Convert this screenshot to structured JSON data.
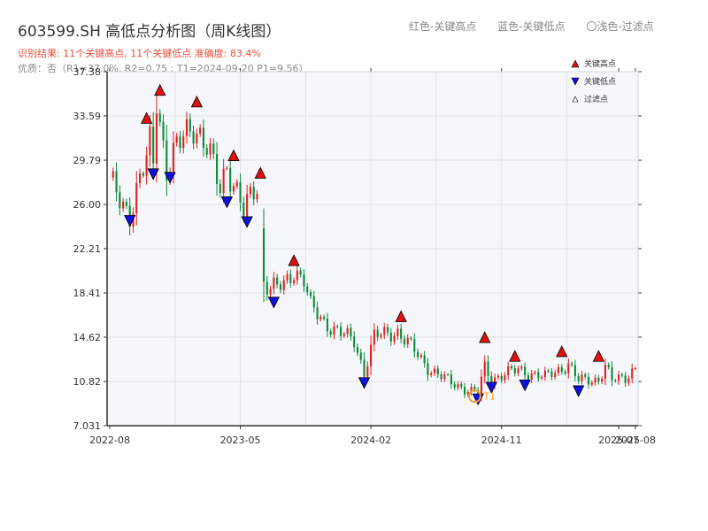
{
  "title": "603599.SH 高低点分析图（周K线图）",
  "subtitle": "识别结果: 11个关键高点, 11个关键低点   准确度: 83.4%",
  "quality": "优质：否（R1=37.0%, R2=0.75 ; T1=2024-09-20 P1=9.56）",
  "top_legend": [
    "红色-关键高点",
    "蓝色-关键低点",
    "〇浅色-过滤点"
  ],
  "colors": {
    "up": "#e02020",
    "down": "#0a8a3a",
    "high_marker": "#e01010",
    "low_marker": "#1010e0",
    "t1": "#f0a030",
    "plot_bg": "#f6f7fa",
    "grid": "#dde1e8"
  },
  "chart_data": {
    "type": "candlestick",
    "ylim": [
      7.031,
      37.38
    ],
    "yticks": [
      "37.38",
      "33.59",
      "29.79",
      "26.00",
      "22.21",
      "18.41",
      "14.62",
      "10.82",
      "7.031"
    ],
    "xticks": [
      {
        "label": "2022-08",
        "week": 0
      },
      {
        "label": "2023-05",
        "week": 39
      },
      {
        "label": "2024-02",
        "week": 78
      },
      {
        "label": "2024-11",
        "week": 117
      },
      {
        "label": "2025-07",
        "week": 152
      },
      {
        "label": "2025-08",
        "week": 157
      }
    ],
    "total_weeks": 157,
    "anchors": [
      [
        0,
        27.8
      ],
      [
        6,
        25.2
      ],
      [
        11,
        29.8
      ],
      [
        12,
        31.2
      ],
      [
        13,
        29.6
      ],
      [
        14,
        35.4
      ],
      [
        17,
        29.0
      ],
      [
        22,
        31.8
      ],
      [
        25,
        33.0
      ],
      [
        29,
        30.8
      ],
      [
        33,
        27.4
      ],
      [
        35,
        29.5
      ],
      [
        40,
        25.3
      ],
      [
        42,
        26.5
      ],
      [
        44,
        27.8
      ],
      [
        46,
        19.5
      ],
      [
        48,
        18.8
      ],
      [
        52,
        19.0
      ],
      [
        55,
        20.4
      ],
      [
        58,
        19.6
      ],
      [
        60,
        17.2
      ],
      [
        64,
        15.9
      ],
      [
        70,
        14.8
      ],
      [
        73,
        14.3
      ],
      [
        76,
        11.6
      ],
      [
        79,
        14.7
      ],
      [
        83,
        14.9
      ],
      [
        86,
        15.1
      ],
      [
        90,
        13.8
      ],
      [
        95,
        12.0
      ],
      [
        102,
        10.7
      ],
      [
        108,
        10.0
      ],
      [
        110,
        9.9
      ],
      [
        112,
        12.0
      ],
      [
        114,
        11.0
      ],
      [
        118,
        11.5
      ],
      [
        122,
        11.8
      ],
      [
        126,
        11.5
      ],
      [
        130,
        11.2
      ],
      [
        134,
        11.8
      ],
      [
        137,
        12.3
      ],
      [
        140,
        10.9
      ],
      [
        146,
        11.0
      ],
      [
        148,
        12.1
      ],
      [
        150,
        10.9
      ],
      [
        154,
        11.2
      ],
      [
        157,
        12.0
      ]
    ],
    "gaps": [
      45
    ],
    "key_highs": [
      {
        "week": 11,
        "price": 32.8
      },
      {
        "week": 15,
        "price": 35.2
      },
      {
        "week": 26,
        "price": 34.2
      },
      {
        "week": 37,
        "price": 29.6
      },
      {
        "week": 45,
        "price": 28.1
      },
      {
        "week": 55,
        "price": 20.6
      },
      {
        "week": 87,
        "price": 15.8
      },
      {
        "week": 112,
        "price": 14.0
      },
      {
        "week": 121,
        "price": 12.4
      },
      {
        "week": 135,
        "price": 12.8
      },
      {
        "week": 146,
        "price": 12.4
      }
    ],
    "key_lows": [
      {
        "week": 6,
        "price": 25.2
      },
      {
        "week": 13,
        "price": 29.2
      },
      {
        "week": 18,
        "price": 28.9
      },
      {
        "week": 35,
        "price": 26.8
      },
      {
        "week": 41,
        "price": 25.1
      },
      {
        "week": 49,
        "price": 18.2
      },
      {
        "week": 76,
        "price": 11.3
      },
      {
        "week": 110,
        "price": 9.9
      },
      {
        "week": 114,
        "price": 10.9
      },
      {
        "week": 124,
        "price": 11.1
      },
      {
        "week": 140,
        "price": 10.6
      }
    ],
    "t1": {
      "label": "T1",
      "week": 109,
      "price": 9.56
    },
    "legend": [
      "关键高点",
      "关键低点",
      "过滤点"
    ]
  }
}
